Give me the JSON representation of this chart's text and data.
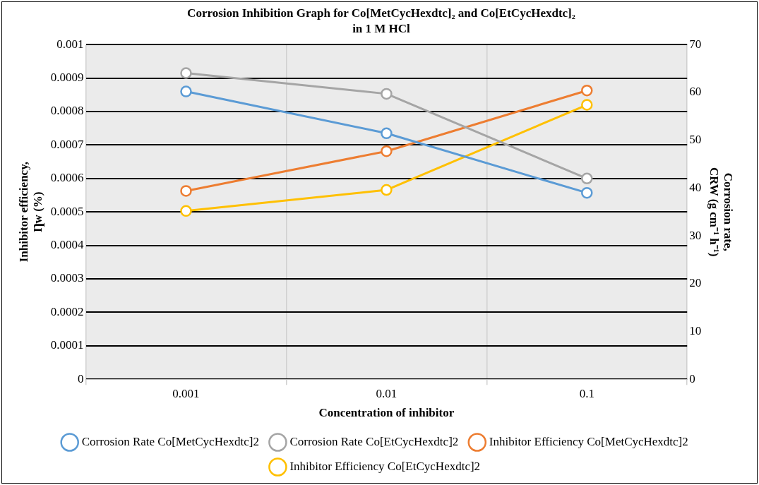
{
  "chart_data": {
    "type": "line",
    "title": "Corrosion Inhibition Graph for Co[MetCycHexdtc]₂ and Co[EtCycHexdtc]₂ in 1 M HCl",
    "xlabel": "Concentration of inhibitor",
    "ylabel": "Inhibitor efficiency, Ƞw (%)",
    "y2label": "Corrosion rate, CRW (g cm⁻¹ h⁻¹)",
    "categories": [
      "0.001",
      "0.01",
      "0.1"
    ],
    "series": [
      {
        "name": "Corrosion Rate Co[MetCycHexdtc]2",
        "color": "#5b9bd5",
        "values": [
          0.00086,
          0.000735,
          0.000557
        ]
      },
      {
        "name": "Corrosion Rate Co[EtCycHexdtc]2",
        "color": "#a5a5a5",
        "values": [
          0.000915,
          0.000853,
          0.0006
        ]
      },
      {
        "name": "Inhibitor Efficiency Co[MetCycHexdtc]2",
        "color": "#ed7d31",
        "axis": "y2",
        "values": [
          39.4,
          47.7,
          60.4
        ]
      },
      {
        "name": "Inhibitor Efficiency Co[EtCycHexdtc]2",
        "color": "#ffc000",
        "axis": "y2",
        "values": [
          35.2,
          39.6,
          57.4
        ]
      }
    ],
    "ylim": [
      0,
      0.001
    ],
    "yticks": [
      0,
      0.0001,
      0.0002,
      0.0003,
      0.0004,
      0.0005,
      0.0006,
      0.0007,
      0.0008,
      0.0009,
      0.001
    ],
    "y2lim": [
      0,
      70
    ],
    "y2ticks": [
      0,
      10,
      20,
      30,
      40,
      50,
      60,
      70
    ],
    "grid": true,
    "legend": "bottom",
    "marker": "circle",
    "line_style": "solid"
  }
}
